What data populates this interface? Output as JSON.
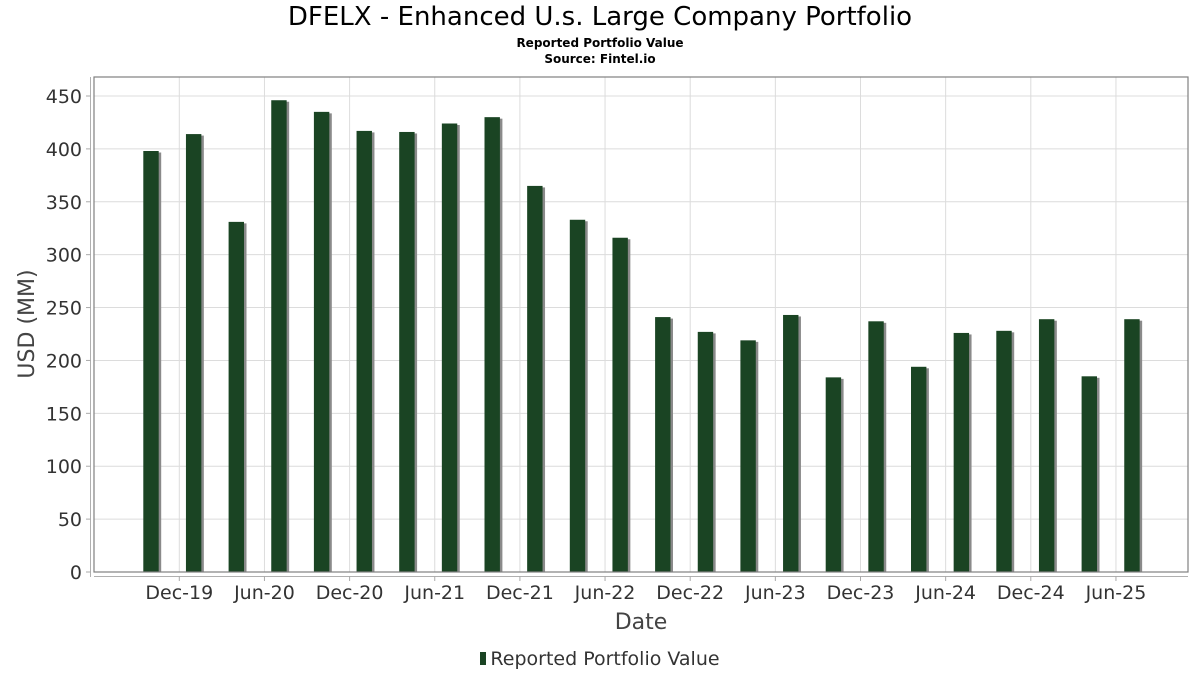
{
  "chart_data": {
    "type": "bar",
    "title": "DFELX - Enhanced U.s. Large Company Portfolio",
    "subtitle": "Reported Portfolio Value",
    "source": "Source: Fintel.io",
    "xlabel": "Date",
    "ylabel": "USD (MM)",
    "ylim": [
      0,
      470
    ],
    "yticks": [
      0,
      50,
      100,
      150,
      200,
      250,
      300,
      350,
      400,
      450
    ],
    "xtick_labels": [
      "Dec-19",
      "Jun-20",
      "Dec-20",
      "Jun-21",
      "Dec-21",
      "Jun-22",
      "Dec-22",
      "Jun-23",
      "Dec-23",
      "Jun-24",
      "Dec-24",
      "Jun-25"
    ],
    "grid": true,
    "legend_position": "bottom-center",
    "series": [
      {
        "name": "Reported Portfolio Value",
        "color": "#1a4423",
        "shadow_color": "#8a8a8a",
        "values": [
          398,
          414,
          331,
          446,
          435,
          417,
          416,
          424,
          430,
          365,
          333,
          316,
          241,
          227,
          219,
          243,
          184,
          237,
          194,
          226,
          228,
          239,
          185,
          239
        ]
      }
    ]
  }
}
